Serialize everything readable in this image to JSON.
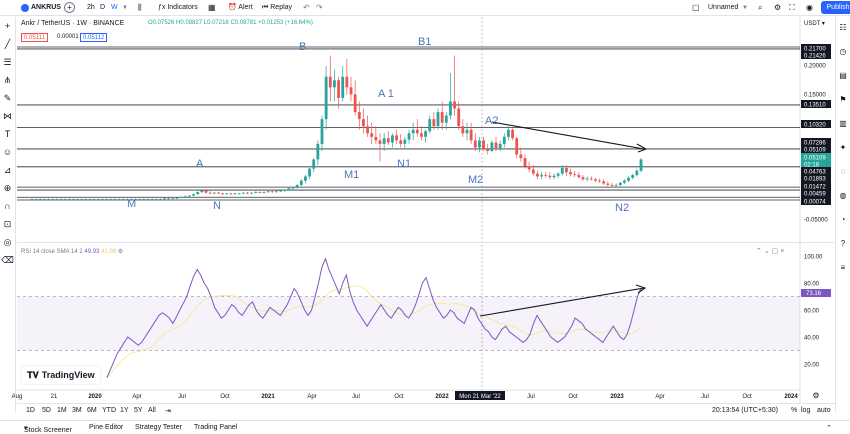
{
  "toolbar": {
    "symbol": "ANKRUS",
    "interval": "2h",
    "interval_d": "D",
    "interval_w": "W",
    "indicators_label": "Indicators",
    "alert_label": "Alert",
    "replay_label": "Replay",
    "layout_name": "Unnamed",
    "publish_label": "Publish"
  },
  "legend": {
    "title": "Ankr / TetherUS · 1W · BINANCE",
    "open": "O0.07526",
    "high": "H0.08827",
    "low": "L0.07216",
    "close": "C0.08781",
    "change": "+0.01253 (+16.64%)",
    "sell": "0.05111",
    "spread": "0.00001",
    "buy": "0.05112"
  },
  "colors": {
    "up": "#26a69a",
    "down": "#ef5350",
    "rsi_line": "#7e57c2",
    "rsi_sma": "#f7e8a0",
    "rsi_band": "#7e57c2",
    "annotation": "#4a76b8",
    "accent": "#2962ff"
  },
  "chart_data": {
    "type": "candlestick",
    "currency": "USDT",
    "x_ticks": [
      "Aug",
      "21",
      "2020",
      "Apr",
      "Jul",
      "Oct",
      "2021",
      "Apr",
      "Jul",
      "Oct",
      "2022",
      "Mon 21 Mar '22",
      "Jul",
      "Oct",
      "2023",
      "Apr",
      "Jul",
      "Oct",
      "2024"
    ],
    "price_axis": [
      "0.21700",
      "0.21426",
      "0.20000",
      "0.15000",
      "0.13510",
      "0.10320",
      "0.07286",
      "0.05109",
      "0.05109",
      "02:18",
      "0.04763",
      "0.01893",
      "0.01472",
      "0.00459",
      "0.00074",
      "-0.05000"
    ],
    "horizontal_levels": [
      "0.21700",
      "0.21426",
      "0.13510",
      "0.10320",
      "0.07286",
      "0.04763",
      "0.01893",
      "0.01472",
      "0.00459",
      "0.00074"
    ],
    "candles": [
      {
        "o": 0.002,
        "h": 0.003,
        "l": 0.001,
        "c": 0.002
      },
      {
        "o": 0.002,
        "h": 0.003,
        "l": 0.001,
        "c": 0.002
      },
      {
        "o": 0.002,
        "h": 0.003,
        "l": 0.001,
        "c": 0.002
      },
      {
        "o": 0.002,
        "h": 0.003,
        "l": 0.001,
        "c": 0.002
      },
      {
        "o": 0.002,
        "h": 0.003,
        "l": 0.001,
        "c": 0.002
      },
      {
        "o": 0.002,
        "h": 0.003,
        "l": 0.001,
        "c": 0.002
      },
      {
        "o": 0.002,
        "h": 0.003,
        "l": 0.001,
        "c": 0.002
      },
      {
        "o": 0.002,
        "h": 0.003,
        "l": 0.001,
        "c": 0.002
      },
      {
        "o": 0.002,
        "h": 0.003,
        "l": 0.001,
        "c": 0.002
      },
      {
        "o": 0.002,
        "h": 0.003,
        "l": 0.001,
        "c": 0.002
      },
      {
        "o": 0.002,
        "h": 0.003,
        "l": 0.001,
        "c": 0.002
      },
      {
        "o": 0.002,
        "h": 0.003,
        "l": 0.001,
        "c": 0.002
      },
      {
        "o": 0.002,
        "h": 0.003,
        "l": 0.001,
        "c": 0.002
      },
      {
        "o": 0.002,
        "h": 0.003,
        "l": 0.001,
        "c": 0.002
      },
      {
        "o": 0.002,
        "h": 0.003,
        "l": 0.001,
        "c": 0.002
      },
      {
        "o": 0.002,
        "h": 0.003,
        "l": 0.001,
        "c": 0.002
      },
      {
        "o": 0.002,
        "h": 0.003,
        "l": 0.001,
        "c": 0.002
      },
      {
        "o": 0.002,
        "h": 0.003,
        "l": 0.001,
        "c": 0.002
      },
      {
        "o": 0.002,
        "h": 0.003,
        "l": 0.001,
        "c": 0.002
      },
      {
        "o": 0.002,
        "h": 0.003,
        "l": 0.001,
        "c": 0.002
      },
      {
        "o": 0.002,
        "h": 0.003,
        "l": 0.001,
        "c": 0.002
      },
      {
        "o": 0.002,
        "h": 0.003,
        "l": 0.001,
        "c": 0.002
      },
      {
        "o": 0.002,
        "h": 0.003,
        "l": 0.001,
        "c": 0.002
      },
      {
        "o": 0.002,
        "h": 0.003,
        "l": 0.001,
        "c": 0.002
      },
      {
        "o": 0.002,
        "h": 0.003,
        "l": 0.001,
        "c": 0.002
      },
      {
        "o": 0.002,
        "h": 0.003,
        "l": 0.001,
        "c": 0.002
      },
      {
        "o": 0.002,
        "h": 0.003,
        "l": 0.001,
        "c": 0.002
      },
      {
        "o": 0.002,
        "h": 0.003,
        "l": 0.001,
        "c": 0.002
      },
      {
        "o": 0.002,
        "h": 0.003,
        "l": 0.001,
        "c": 0.002
      },
      {
        "o": 0.002,
        "h": 0.003,
        "l": 0.001,
        "c": 0.002
      },
      {
        "o": 0.002,
        "h": 0.003,
        "l": 0.001,
        "c": 0.002
      },
      {
        "o": 0.002,
        "h": 0.003,
        "l": 0.001,
        "c": 0.002
      },
      {
        "o": 0.002,
        "h": 0.004,
        "l": 0.001,
        "c": 0.003
      },
      {
        "o": 0.003,
        "h": 0.004,
        "l": 0.002,
        "c": 0.003
      },
      {
        "o": 0.003,
        "h": 0.004,
        "l": 0.002,
        "c": 0.003
      },
      {
        "o": 0.003,
        "h": 0.004,
        "l": 0.002,
        "c": 0.004
      },
      {
        "o": 0.004,
        "h": 0.006,
        "l": 0.003,
        "c": 0.005
      },
      {
        "o": 0.005,
        "h": 0.007,
        "l": 0.004,
        "c": 0.006
      },
      {
        "o": 0.006,
        "h": 0.008,
        "l": 0.005,
        "c": 0.007
      },
      {
        "o": 0.007,
        "h": 0.01,
        "l": 0.006,
        "c": 0.009
      },
      {
        "o": 0.009,
        "h": 0.013,
        "l": 0.008,
        "c": 0.012
      },
      {
        "o": 0.012,
        "h": 0.015,
        "l": 0.01,
        "c": 0.014
      },
      {
        "o": 0.014,
        "h": 0.015,
        "l": 0.01,
        "c": 0.011
      },
      {
        "o": 0.011,
        "h": 0.013,
        "l": 0.009,
        "c": 0.01
      },
      {
        "o": 0.01,
        "h": 0.012,
        "l": 0.009,
        "c": 0.011
      },
      {
        "o": 0.011,
        "h": 0.012,
        "l": 0.009,
        "c": 0.01
      },
      {
        "o": 0.01,
        "h": 0.011,
        "l": 0.008,
        "c": 0.009
      },
      {
        "o": 0.009,
        "h": 0.011,
        "l": 0.008,
        "c": 0.01
      },
      {
        "o": 0.01,
        "h": 0.011,
        "l": 0.008,
        "c": 0.009
      },
      {
        "o": 0.009,
        "h": 0.011,
        "l": 0.008,
        "c": 0.01
      },
      {
        "o": 0.01,
        "h": 0.011,
        "l": 0.009,
        "c": 0.01
      },
      {
        "o": 0.01,
        "h": 0.012,
        "l": 0.009,
        "c": 0.011
      },
      {
        "o": 0.011,
        "h": 0.012,
        "l": 0.009,
        "c": 0.01
      },
      {
        "o": 0.01,
        "h": 0.012,
        "l": 0.009,
        "c": 0.011
      },
      {
        "o": 0.011,
        "h": 0.013,
        "l": 0.01,
        "c": 0.012
      },
      {
        "o": 0.012,
        "h": 0.013,
        "l": 0.01,
        "c": 0.011
      },
      {
        "o": 0.011,
        "h": 0.013,
        "l": 0.01,
        "c": 0.012
      },
      {
        "o": 0.012,
        "h": 0.014,
        "l": 0.011,
        "c": 0.013
      },
      {
        "o": 0.013,
        "h": 0.015,
        "l": 0.011,
        "c": 0.012
      },
      {
        "o": 0.012,
        "h": 0.014,
        "l": 0.011,
        "c": 0.013
      },
      {
        "o": 0.013,
        "h": 0.015,
        "l": 0.012,
        "c": 0.014
      },
      {
        "o": 0.014,
        "h": 0.016,
        "l": 0.012,
        "c": 0.015
      },
      {
        "o": 0.015,
        "h": 0.018,
        "l": 0.014,
        "c": 0.017
      },
      {
        "o": 0.017,
        "h": 0.02,
        "l": 0.015,
        "c": 0.019
      },
      {
        "o": 0.019,
        "h": 0.023,
        "l": 0.017,
        "c": 0.022
      },
      {
        "o": 0.022,
        "h": 0.03,
        "l": 0.02,
        "c": 0.028
      },
      {
        "o": 0.028,
        "h": 0.036,
        "l": 0.024,
        "c": 0.034
      },
      {
        "o": 0.034,
        "h": 0.048,
        "l": 0.03,
        "c": 0.045
      },
      {
        "o": 0.045,
        "h": 0.06,
        "l": 0.04,
        "c": 0.058
      },
      {
        "o": 0.058,
        "h": 0.085,
        "l": 0.05,
        "c": 0.08
      },
      {
        "o": 0.08,
        "h": 0.12,
        "l": 0.07,
        "c": 0.115
      },
      {
        "o": 0.115,
        "h": 0.19,
        "l": 0.1,
        "c": 0.175
      },
      {
        "o": 0.175,
        "h": 0.205,
        "l": 0.14,
        "c": 0.16
      },
      {
        "o": 0.16,
        "h": 0.185,
        "l": 0.14,
        "c": 0.17
      },
      {
        "o": 0.17,
        "h": 0.175,
        "l": 0.13,
        "c": 0.145
      },
      {
        "o": 0.145,
        "h": 0.19,
        "l": 0.14,
        "c": 0.175
      },
      {
        "o": 0.175,
        "h": 0.2,
        "l": 0.15,
        "c": 0.16
      },
      {
        "o": 0.16,
        "h": 0.175,
        "l": 0.14,
        "c": 0.15
      },
      {
        "o": 0.15,
        "h": 0.17,
        "l": 0.12,
        "c": 0.125
      },
      {
        "o": 0.125,
        "h": 0.14,
        "l": 0.1,
        "c": 0.115
      },
      {
        "o": 0.115,
        "h": 0.13,
        "l": 0.095,
        "c": 0.105
      },
      {
        "o": 0.105,
        "h": 0.12,
        "l": 0.09,
        "c": 0.095
      },
      {
        "o": 0.095,
        "h": 0.11,
        "l": 0.08,
        "c": 0.09
      },
      {
        "o": 0.09,
        "h": 0.105,
        "l": 0.08,
        "c": 0.085
      },
      {
        "o": 0.085,
        "h": 0.095,
        "l": 0.055,
        "c": 0.08
      },
      {
        "o": 0.08,
        "h": 0.095,
        "l": 0.07,
        "c": 0.088
      },
      {
        "o": 0.088,
        "h": 0.098,
        "l": 0.078,
        "c": 0.082
      },
      {
        "o": 0.082,
        "h": 0.095,
        "l": 0.075,
        "c": 0.092
      },
      {
        "o": 0.092,
        "h": 0.1,
        "l": 0.08,
        "c": 0.085
      },
      {
        "o": 0.085,
        "h": 0.094,
        "l": 0.075,
        "c": 0.08
      },
      {
        "o": 0.08,
        "h": 0.09,
        "l": 0.072,
        "c": 0.086
      },
      {
        "o": 0.086,
        "h": 0.1,
        "l": 0.08,
        "c": 0.095
      },
      {
        "o": 0.095,
        "h": 0.11,
        "l": 0.085,
        "c": 0.1
      },
      {
        "o": 0.1,
        "h": 0.115,
        "l": 0.09,
        "c": 0.095
      },
      {
        "o": 0.095,
        "h": 0.105,
        "l": 0.085,
        "c": 0.09
      },
      {
        "o": 0.09,
        "h": 0.1,
        "l": 0.082,
        "c": 0.098
      },
      {
        "o": 0.098,
        "h": 0.12,
        "l": 0.095,
        "c": 0.115
      },
      {
        "o": 0.115,
        "h": 0.125,
        "l": 0.1,
        "c": 0.105
      },
      {
        "o": 0.105,
        "h": 0.13,
        "l": 0.1,
        "c": 0.125
      },
      {
        "o": 0.125,
        "h": 0.14,
        "l": 0.1,
        "c": 0.11
      },
      {
        "o": 0.11,
        "h": 0.125,
        "l": 0.1,
        "c": 0.12
      },
      {
        "o": 0.12,
        "h": 0.18,
        "l": 0.115,
        "c": 0.14
      },
      {
        "o": 0.14,
        "h": 0.205,
        "l": 0.12,
        "c": 0.13
      },
      {
        "o": 0.13,
        "h": 0.14,
        "l": 0.1,
        "c": 0.105
      },
      {
        "o": 0.105,
        "h": 0.115,
        "l": 0.09,
        "c": 0.095
      },
      {
        "o": 0.095,
        "h": 0.11,
        "l": 0.085,
        "c": 0.1
      },
      {
        "o": 0.1,
        "h": 0.11,
        "l": 0.08,
        "c": 0.085
      },
      {
        "o": 0.085,
        "h": 0.095,
        "l": 0.07,
        "c": 0.075
      },
      {
        "o": 0.075,
        "h": 0.09,
        "l": 0.068,
        "c": 0.085
      },
      {
        "o": 0.085,
        "h": 0.09,
        "l": 0.07,
        "c": 0.072
      },
      {
        "o": 0.072,
        "h": 0.08,
        "l": 0.065,
        "c": 0.07
      },
      {
        "o": 0.07,
        "h": 0.085,
        "l": 0.068,
        "c": 0.082
      },
      {
        "o": 0.082,
        "h": 0.09,
        "l": 0.07,
        "c": 0.074
      },
      {
        "o": 0.074,
        "h": 0.085,
        "l": 0.07,
        "c": 0.08
      },
      {
        "o": 0.08,
        "h": 0.095,
        "l": 0.075,
        "c": 0.09
      },
      {
        "o": 0.09,
        "h": 0.105,
        "l": 0.085,
        "c": 0.1
      },
      {
        "o": 0.1,
        "h": 0.102,
        "l": 0.085,
        "c": 0.088
      },
      {
        "o": 0.088,
        "h": 0.09,
        "l": 0.06,
        "c": 0.065
      },
      {
        "o": 0.065,
        "h": 0.075,
        "l": 0.055,
        "c": 0.06
      },
      {
        "o": 0.06,
        "h": 0.065,
        "l": 0.045,
        "c": 0.048
      },
      {
        "o": 0.048,
        "h": 0.055,
        "l": 0.04,
        "c": 0.044
      },
      {
        "o": 0.044,
        "h": 0.05,
        "l": 0.035,
        "c": 0.038
      },
      {
        "o": 0.038,
        "h": 0.042,
        "l": 0.03,
        "c": 0.034
      },
      {
        "o": 0.034,
        "h": 0.04,
        "l": 0.03,
        "c": 0.036
      },
      {
        "o": 0.036,
        "h": 0.04,
        "l": 0.032,
        "c": 0.035
      },
      {
        "o": 0.035,
        "h": 0.04,
        "l": 0.03,
        "c": 0.033
      },
      {
        "o": 0.033,
        "h": 0.038,
        "l": 0.03,
        "c": 0.035
      },
      {
        "o": 0.035,
        "h": 0.04,
        "l": 0.032,
        "c": 0.038
      },
      {
        "o": 0.038,
        "h": 0.05,
        "l": 0.035,
        "c": 0.046
      },
      {
        "o": 0.046,
        "h": 0.05,
        "l": 0.035,
        "c": 0.04
      },
      {
        "o": 0.04,
        "h": 0.045,
        "l": 0.034,
        "c": 0.037
      },
      {
        "o": 0.037,
        "h": 0.042,
        "l": 0.033,
        "c": 0.036
      },
      {
        "o": 0.036,
        "h": 0.04,
        "l": 0.031,
        "c": 0.033
      },
      {
        "o": 0.033,
        "h": 0.036,
        "l": 0.028,
        "c": 0.03
      },
      {
        "o": 0.03,
        "h": 0.034,
        "l": 0.027,
        "c": 0.031
      },
      {
        "o": 0.031,
        "h": 0.034,
        "l": 0.028,
        "c": 0.03
      },
      {
        "o": 0.03,
        "h": 0.032,
        "l": 0.026,
        "c": 0.028
      },
      {
        "o": 0.028,
        "h": 0.031,
        "l": 0.025,
        "c": 0.027
      },
      {
        "o": 0.027,
        "h": 0.03,
        "l": 0.022,
        "c": 0.024
      },
      {
        "o": 0.024,
        "h": 0.027,
        "l": 0.02,
        "c": 0.022
      },
      {
        "o": 0.022,
        "h": 0.025,
        "l": 0.019,
        "c": 0.021
      },
      {
        "o": 0.021,
        "h": 0.024,
        "l": 0.019,
        "c": 0.022
      },
      {
        "o": 0.022,
        "h": 0.026,
        "l": 0.02,
        "c": 0.025
      },
      {
        "o": 0.025,
        "h": 0.03,
        "l": 0.023,
        "c": 0.028
      },
      {
        "o": 0.028,
        "h": 0.034,
        "l": 0.026,
        "c": 0.032
      },
      {
        "o": 0.032,
        "h": 0.038,
        "l": 0.03,
        "c": 0.036
      },
      {
        "o": 0.036,
        "h": 0.045,
        "l": 0.034,
        "c": 0.042
      },
      {
        "o": 0.042,
        "h": 0.06,
        "l": 0.04,
        "c": 0.058
      }
    ],
    "rsi": {
      "label": "RSI 14 close SMA 14 2",
      "rsi_value": "49.93",
      "sma_value": "41.09",
      "current_label": "73.16",
      "y_ticks": [
        "100.00",
        "80.00",
        "60.00",
        "40.00",
        "20.00"
      ],
      "upper_band": 70,
      "lower_band": 30,
      "values": [
        10,
        16,
        22,
        28,
        32,
        36,
        40,
        38,
        36,
        34,
        36,
        40,
        44,
        48,
        52,
        56,
        58,
        56,
        54,
        50,
        55,
        60,
        65,
        70,
        78,
        85,
        90,
        86,
        80,
        76,
        70,
        62,
        58,
        54,
        56,
        60,
        64,
        62,
        58,
        56,
        60,
        64,
        66,
        60,
        56,
        54,
        58,
        62,
        60,
        58,
        56,
        60,
        64,
        70,
        76,
        72,
        66,
        60,
        56,
        60,
        70,
        80,
        92,
        98,
        90,
        84,
        78,
        72,
        80,
        86,
        74,
        66,
        60,
        56,
        52,
        48,
        52,
        56,
        60,
        64,
        60,
        56,
        54,
        58,
        62,
        60,
        56,
        54,
        58,
        64,
        72,
        80,
        84,
        76,
        68,
        62,
        58,
        54,
        56,
        60,
        58,
        54,
        52,
        50,
        56,
        62,
        60,
        54,
        50,
        46,
        44,
        40,
        38,
        42,
        46,
        48,
        44,
        42,
        40,
        38,
        36,
        38,
        42,
        50,
        56,
        52,
        48,
        44,
        40,
        38,
        36,
        38,
        40,
        44,
        48,
        54,
        52,
        50,
        46,
        44,
        42,
        40,
        38,
        36,
        40,
        44,
        48,
        44,
        40,
        38,
        42,
        50,
        60,
        70,
        76
      ]
    },
    "annotations": [
      {
        "text": "B",
        "color": "#4a76b8"
      },
      {
        "text": "B1",
        "color": "#4a76b8"
      },
      {
        "text": "A 1",
        "color": "#4a76b8"
      },
      {
        "text": "A2",
        "color": "#4a76b8"
      },
      {
        "text": "A",
        "color": "#4a76b8"
      },
      {
        "text": "N1",
        "color": "#4a76b8"
      },
      {
        "text": "M1",
        "color": "#4a76b8"
      },
      {
        "text": "M2",
        "color": "#4a76b8"
      },
      {
        "text": "M",
        "color": "#4a76b8"
      },
      {
        "text": "N",
        "color": "#4a76b8"
      },
      {
        "text": "N2",
        "color": "#4a76b8"
      }
    ]
  },
  "range_bar": {
    "buttons": [
      "1D",
      "5D",
      "1M",
      "3M",
      "6M",
      "YTD",
      "1Y",
      "5Y",
      "All"
    ],
    "time": "20:13:54 (UTC+5:30)",
    "percent": "%",
    "log": "log",
    "auto": "auto"
  },
  "bottom_tabs": [
    "Stock Screener",
    "Pine Editor",
    "Strategy Tester",
    "Trading Panel"
  ]
}
